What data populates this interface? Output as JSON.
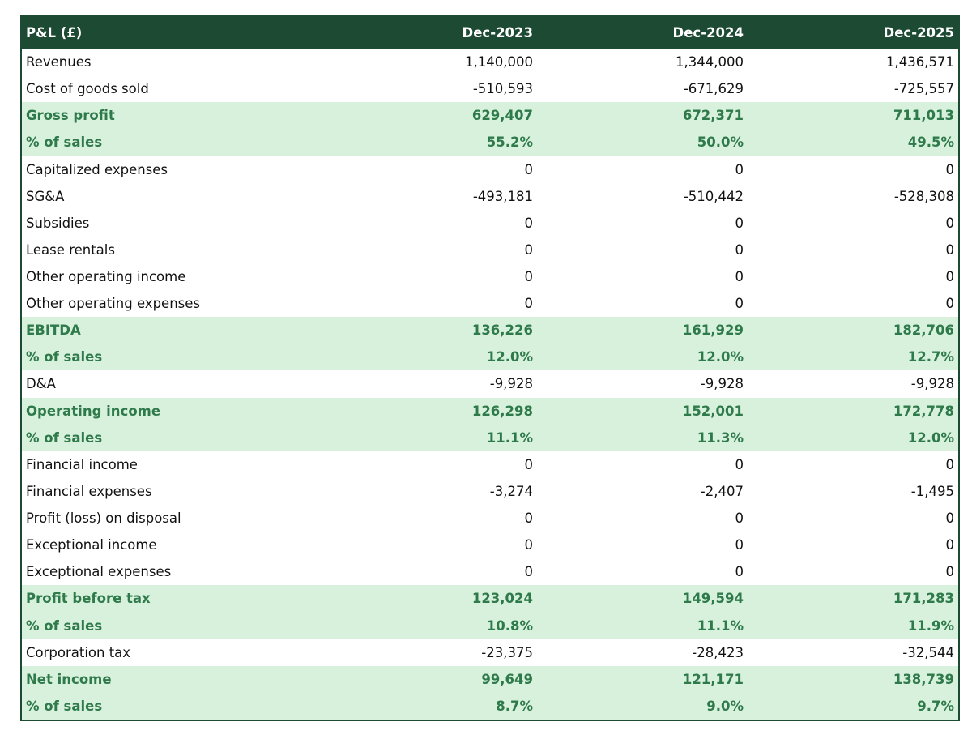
{
  "table": {
    "header": [
      "P&L (£)",
      "Dec-2023",
      "Dec-2024",
      "Dec-2025"
    ],
    "rows": [
      {
        "label": "Revenues",
        "values": [
          "1,140,000",
          "1,344,000",
          "1,436,571"
        ],
        "highlight": false
      },
      {
        "label": "Cost of goods sold",
        "values": [
          "-510,593",
          "-671,629",
          "-725,557"
        ],
        "highlight": false
      },
      {
        "label": "Gross profit",
        "values": [
          "629,407",
          "672,371",
          "711,013"
        ],
        "highlight": true
      },
      {
        "label": "% of sales",
        "values": [
          "55.2%",
          "50.0%",
          "49.5%"
        ],
        "highlight": true
      },
      {
        "label": "Capitalized expenses",
        "values": [
          "0",
          "0",
          "0"
        ],
        "highlight": false
      },
      {
        "label": "SG&A",
        "values": [
          "-493,181",
          "-510,442",
          "-528,308"
        ],
        "highlight": false
      },
      {
        "label": "Subsidies",
        "values": [
          "0",
          "0",
          "0"
        ],
        "highlight": false
      },
      {
        "label": "Lease rentals",
        "values": [
          "0",
          "0",
          "0"
        ],
        "highlight": false
      },
      {
        "label": "Other operating income",
        "values": [
          "0",
          "0",
          "0"
        ],
        "highlight": false
      },
      {
        "label": "Other operating expenses",
        "values": [
          "0",
          "0",
          "0"
        ],
        "highlight": false
      },
      {
        "label": "EBITDA",
        "values": [
          "136,226",
          "161,929",
          "182,706"
        ],
        "highlight": true
      },
      {
        "label": "% of sales",
        "values": [
          "12.0%",
          "12.0%",
          "12.7%"
        ],
        "highlight": true
      },
      {
        "label": "D&A",
        "values": [
          "-9,928",
          "-9,928",
          "-9,928"
        ],
        "highlight": false
      },
      {
        "label": "Operating income",
        "values": [
          "126,298",
          "152,001",
          "172,778"
        ],
        "highlight": true
      },
      {
        "label": "% of sales",
        "values": [
          "11.1%",
          "11.3%",
          "12.0%"
        ],
        "highlight": true
      },
      {
        "label": "Financial income",
        "values": [
          "0",
          "0",
          "0"
        ],
        "highlight": false
      },
      {
        "label": "Financial expenses",
        "values": [
          "-3,274",
          "-2,407",
          "-1,495"
        ],
        "highlight": false
      },
      {
        "label": "Profit (loss) on disposal",
        "values": [
          "0",
          "0",
          "0"
        ],
        "highlight": false
      },
      {
        "label": "Exceptional income",
        "values": [
          "0",
          "0",
          "0"
        ],
        "highlight": false
      },
      {
        "label": "Exceptional expenses",
        "values": [
          "0",
          "0",
          "0"
        ],
        "highlight": false
      },
      {
        "label": "Profit before tax",
        "values": [
          "123,024",
          "149,594",
          "171,283"
        ],
        "highlight": true
      },
      {
        "label": "% of sales",
        "values": [
          "10.8%",
          "11.1%",
          "11.9%"
        ],
        "highlight": true
      },
      {
        "label": "Corporation tax",
        "values": [
          "-23,375",
          "-28,423",
          "-32,544"
        ],
        "highlight": false
      },
      {
        "label": "Net income",
        "values": [
          "99,649",
          "121,171",
          "138,739"
        ],
        "highlight": true
      },
      {
        "label": "% of sales",
        "values": [
          "8.7%",
          "9.0%",
          "9.7%"
        ],
        "highlight": true
      }
    ]
  }
}
